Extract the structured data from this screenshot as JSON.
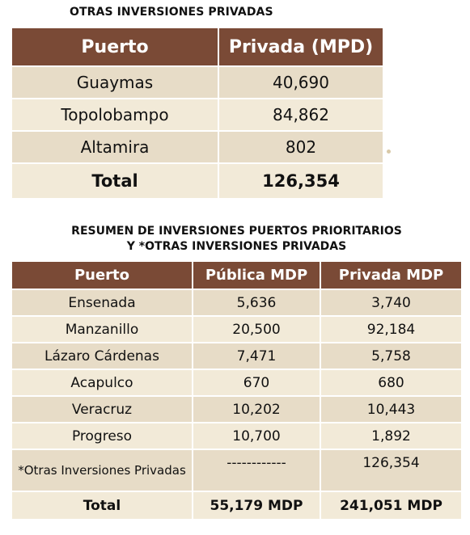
{
  "table1": {
    "title": "OTRAS INVERSIONES PRIVADAS",
    "headers": [
      "Puerto",
      "Privada (MPD)"
    ],
    "rows": [
      [
        "Guaymas",
        "40,690"
      ],
      [
        "Topolobampo",
        "84,862"
      ],
      [
        "Altamira",
        "802"
      ]
    ],
    "total": [
      "Total",
      "126,354"
    ]
  },
  "table2": {
    "title_line1": "RESUMEN DE INVERSIONES PUERTOS PRIORITARIOS",
    "title_line2": "Y *OTRAS INVERSIONES PRIVADAS",
    "headers": [
      "Puerto",
      "Pública MDP",
      "Privada MDP"
    ],
    "rows": [
      [
        "Ensenada",
        "5,636",
        "3,740"
      ],
      [
        "Manzanillo",
        "20,500",
        "92,184"
      ],
      [
        "Lázaro Cárdenas",
        "7,471",
        "5,758"
      ],
      [
        "Acapulco",
        "670",
        "680"
      ],
      [
        "Veracruz",
        "10,202",
        "10,443"
      ],
      [
        "Progreso",
        "10,700",
        "1,892"
      ],
      [
        "*Otras Inversiones Privadas",
        "------------",
        "126,354"
      ]
    ],
    "total": [
      "Total",
      "55,179 MDP",
      "241,051 MDP"
    ]
  },
  "colors": {
    "header_bg": "#7a4a36",
    "row_bg": "#e7dcc7",
    "row_alt_bg": "#f2ead8"
  }
}
